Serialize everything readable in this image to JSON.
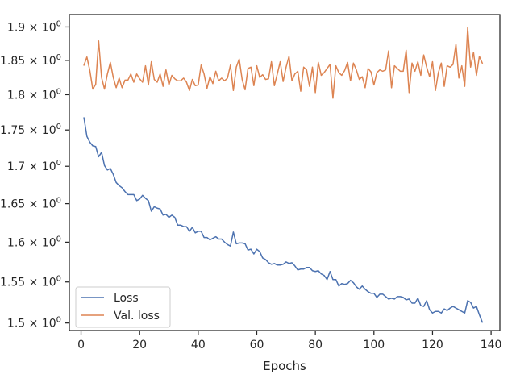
{
  "chart_data": {
    "type": "line",
    "title": "",
    "xlabel": "Epochs",
    "ylabel": "",
    "xlim": [
      -4,
      143
    ],
    "ylim": [
      1.491,
      1.919
    ],
    "yscale": "log",
    "grid": false,
    "legend_position": "lower-left",
    "x_ticks": [
      0,
      20,
      40,
      60,
      80,
      100,
      120,
      140
    ],
    "x_tick_labels": [
      "0",
      "20",
      "40",
      "60",
      "80",
      "100",
      "120",
      "140"
    ],
    "y_ticks": [
      1.5,
      1.55,
      1.6,
      1.65,
      1.7,
      1.75,
      1.8,
      1.85,
      1.9
    ],
    "y_tick_mantissas": [
      "1.5",
      "1.55",
      "1.6",
      "1.65",
      "1.7",
      "1.75",
      "1.8",
      "1.85",
      "1.9"
    ],
    "y_tick_exponent": "0",
    "y_tick_times": "×",
    "y_tick_base": "10",
    "series": [
      {
        "name": "Loss",
        "color": "#4c72b0",
        "x": [
          1,
          2,
          3,
          4,
          5,
          6,
          7,
          8,
          9,
          10,
          11,
          12,
          13,
          14,
          15,
          16,
          17,
          18,
          19,
          20,
          21,
          22,
          23,
          24,
          25,
          26,
          27,
          28,
          29,
          30,
          31,
          32,
          33,
          34,
          35,
          36,
          37,
          38,
          39,
          40,
          41,
          42,
          43,
          44,
          45,
          46,
          47,
          48,
          49,
          50,
          51,
          52,
          53,
          54,
          55,
          56,
          57,
          58,
          59,
          60,
          61,
          62,
          63,
          64,
          65,
          66,
          67,
          68,
          69,
          70,
          71,
          72,
          73,
          74,
          75,
          76,
          77,
          78,
          79,
          80,
          81,
          82,
          83,
          84,
          85,
          86,
          87,
          88,
          89,
          90,
          91,
          92,
          93,
          94,
          95,
          96,
          97,
          98,
          99,
          100,
          101,
          102,
          103,
          104,
          105,
          106,
          107,
          108,
          109,
          110,
          111,
          112,
          113,
          114,
          115,
          116,
          117,
          118,
          119,
          120,
          121,
          122,
          123,
          124,
          125,
          126,
          127,
          128,
          129,
          130,
          131,
          132,
          133,
          134,
          135,
          136,
          137
        ],
        "values": [
          1.767,
          1.741,
          1.733,
          1.728,
          1.727,
          1.713,
          1.719,
          1.701,
          1.695,
          1.697,
          1.689,
          1.678,
          1.674,
          1.671,
          1.666,
          1.662,
          1.662,
          1.662,
          1.654,
          1.656,
          1.661,
          1.657,
          1.654,
          1.64,
          1.646,
          1.644,
          1.643,
          1.635,
          1.636,
          1.632,
          1.635,
          1.632,
          1.622,
          1.622,
          1.62,
          1.62,
          1.614,
          1.619,
          1.612,
          1.614,
          1.614,
          1.606,
          1.606,
          1.603,
          1.605,
          1.607,
          1.604,
          1.604,
          1.6,
          1.597,
          1.595,
          1.613,
          1.598,
          1.599,
          1.599,
          1.598,
          1.59,
          1.591,
          1.585,
          1.591,
          1.588,
          1.58,
          1.578,
          1.574,
          1.572,
          1.573,
          1.571,
          1.571,
          1.572,
          1.575,
          1.573,
          1.574,
          1.57,
          1.565,
          1.566,
          1.566,
          1.568,
          1.568,
          1.564,
          1.563,
          1.564,
          1.56,
          1.558,
          1.553,
          1.563,
          1.553,
          1.553,
          1.545,
          1.548,
          1.547,
          1.548,
          1.552,
          1.549,
          1.544,
          1.541,
          1.545,
          1.541,
          1.538,
          1.536,
          1.536,
          1.531,
          1.535,
          1.535,
          1.532,
          1.529,
          1.53,
          1.529,
          1.532,
          1.532,
          1.531,
          1.528,
          1.529,
          1.524,
          1.524,
          1.53,
          1.521,
          1.52,
          1.527,
          1.516,
          1.512,
          1.514,
          1.514,
          1.512,
          1.517,
          1.515,
          1.518,
          1.52,
          1.518,
          1.516,
          1.514,
          1.512,
          1.527,
          1.525,
          1.518,
          1.52,
          1.51,
          1.501
        ]
      },
      {
        "name": "Val. loss",
        "color": "#dd8452",
        "x": [
          1,
          2,
          3,
          4,
          5,
          6,
          7,
          8,
          9,
          10,
          11,
          12,
          13,
          14,
          15,
          16,
          17,
          18,
          19,
          20,
          21,
          22,
          23,
          24,
          25,
          26,
          27,
          28,
          29,
          30,
          31,
          32,
          33,
          34,
          35,
          36,
          37,
          38,
          39,
          40,
          41,
          42,
          43,
          44,
          45,
          46,
          47,
          48,
          49,
          50,
          51,
          52,
          53,
          54,
          55,
          56,
          57,
          58,
          59,
          60,
          61,
          62,
          63,
          64,
          65,
          66,
          67,
          68,
          69,
          70,
          71,
          72,
          73,
          74,
          75,
          76,
          77,
          78,
          79,
          80,
          81,
          82,
          83,
          84,
          85,
          86,
          87,
          88,
          89,
          90,
          91,
          92,
          93,
          94,
          95,
          96,
          97,
          98,
          99,
          100,
          101,
          102,
          103,
          104,
          105,
          106,
          107,
          108,
          109,
          110,
          111,
          112,
          113,
          114,
          115,
          116,
          117,
          118,
          119,
          120,
          121,
          122,
          123,
          124,
          125,
          126,
          127,
          128,
          129,
          130,
          131,
          132,
          133,
          134,
          135,
          136,
          137
        ],
        "values": [
          1.843,
          1.855,
          1.835,
          1.808,
          1.815,
          1.879,
          1.825,
          1.808,
          1.83,
          1.847,
          1.825,
          1.81,
          1.824,
          1.81,
          1.821,
          1.821,
          1.83,
          1.818,
          1.83,
          1.823,
          1.818,
          1.842,
          1.814,
          1.848,
          1.822,
          1.818,
          1.83,
          1.812,
          1.836,
          1.814,
          1.828,
          1.823,
          1.82,
          1.82,
          1.824,
          1.818,
          1.806,
          1.822,
          1.813,
          1.814,
          1.843,
          1.83,
          1.809,
          1.826,
          1.816,
          1.834,
          1.82,
          1.824,
          1.82,
          1.824,
          1.843,
          1.806,
          1.84,
          1.852,
          1.822,
          1.807,
          1.838,
          1.84,
          1.813,
          1.842,
          1.825,
          1.829,
          1.822,
          1.823,
          1.848,
          1.813,
          1.83,
          1.848,
          1.819,
          1.84,
          1.856,
          1.82,
          1.83,
          1.834,
          1.805,
          1.84,
          1.836,
          1.812,
          1.84,
          1.803,
          1.847,
          1.828,
          1.832,
          1.838,
          1.844,
          1.795,
          1.842,
          1.832,
          1.828,
          1.835,
          1.847,
          1.82,
          1.846,
          1.836,
          1.822,
          1.826,
          1.81,
          1.838,
          1.833,
          1.814,
          1.832,
          1.836,
          1.834,
          1.836,
          1.864,
          1.81,
          1.842,
          1.838,
          1.834,
          1.834,
          1.865,
          1.803,
          1.846,
          1.834,
          1.848,
          1.828,
          1.858,
          1.84,
          1.826,
          1.848,
          1.806,
          1.832,
          1.846,
          1.812,
          1.842,
          1.84,
          1.844,
          1.874,
          1.824,
          1.842,
          1.812,
          1.899,
          1.84,
          1.862,
          1.828,
          1.856,
          1.846
        ]
      }
    ]
  }
}
